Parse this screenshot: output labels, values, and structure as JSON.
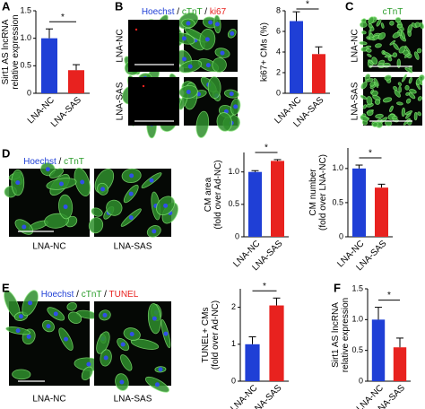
{
  "chart_data": [
    {
      "type": "bar",
      "panel": "A",
      "ylabel": [
        "Sirt1 AS lncRNA",
        "relative expression"
      ],
      "categories": [
        "LNA-NC",
        "LNA-SAS"
      ],
      "values": [
        1.0,
        0.42
      ],
      "errors": [
        0.17,
        0.1
      ],
      "colors": [
        "#1f3fd6",
        "#e8221f"
      ],
      "ylim": [
        0,
        1.5
      ],
      "yticks": [
        0,
        0.5,
        {
          "value": 1,
          "label": "1.0"
        },
        1.5
      ],
      "significance": "*"
    },
    {
      "type": "bar",
      "panel": "B",
      "ylabel": [
        "ki67+ CMs (%)"
      ],
      "categories": [
        "LNA-NC",
        "LNA-SAS"
      ],
      "values": [
        7.0,
        3.8
      ],
      "errors": [
        0.9,
        0.7
      ],
      "colors": [
        "#1f3fd6",
        "#e8221f"
      ],
      "ylim": [
        0,
        8
      ],
      "yticks": [
        0,
        2,
        4,
        6,
        8
      ],
      "significance": "*"
    },
    {
      "type": "bar",
      "panel": "D",
      "ylabel": [
        "CM area",
        "(fold over Ad-NC)"
      ],
      "categories": [
        "LNA-NC",
        "LNA-SAS"
      ],
      "values": [
        1.0,
        1.17
      ],
      "errors": [
        0.02,
        0.02
      ],
      "colors": [
        "#1f3fd6",
        "#e8221f"
      ],
      "ylim": [
        0,
        1.3
      ],
      "yticks": [
        0,
        0.5,
        {
          "value": 1,
          "label": "1.0"
        }
      ],
      "significance": "*"
    },
    {
      "type": "bar",
      "panel": "D",
      "ylabel": [
        "CM number",
        "(fold over LNA-NC)"
      ],
      "categories": [
        "LNA-NC",
        "LNA-SAS"
      ],
      "values": [
        1.0,
        0.72
      ],
      "errors": [
        0.05,
        0.05
      ],
      "colors": [
        "#1f3fd6",
        "#e8221f"
      ],
      "ylim": [
        0,
        1.3
      ],
      "yticks": [
        0,
        0.5,
        {
          "value": 1,
          "label": "1.0"
        }
      ],
      "significance": "*"
    },
    {
      "type": "bar",
      "panel": "E",
      "ylabel": [
        "TUNEL+ CMs",
        "(fold over Ad-NC)"
      ],
      "categories": [
        "LNA-NC",
        "LNA-SAS"
      ],
      "values": [
        1.0,
        2.05
      ],
      "errors": [
        0.2,
        0.2
      ],
      "colors": [
        "#1f3fd6",
        "#e8221f"
      ],
      "ylim": [
        0,
        2.5
      ],
      "yticks": [
        0,
        1,
        2
      ],
      "significance": "*"
    },
    {
      "type": "bar",
      "panel": "F",
      "ylabel": [
        "Sirt1 AS lncRNA",
        "relative expression"
      ],
      "categories": [
        "LNA-NC",
        "LNA-SAS"
      ],
      "values": [
        1.0,
        0.55
      ],
      "errors": [
        0.2,
        0.15
      ],
      "colors": [
        "#1f3fd6",
        "#e8221f"
      ],
      "ylim": [
        0,
        1.5
      ],
      "yticks": [
        0,
        0.5,
        {
          "value": 1,
          "label": "1.0"
        },
        1.5
      ],
      "significance": "*"
    }
  ],
  "figure": {
    "letters": [
      "B",
      "C",
      "E"
    ],
    "stain_b": [
      {
        "text": "Hoechst",
        "color": "#1f3fd6"
      },
      {
        "text": " / ",
        "color": "#000000"
      },
      {
        "text": "cTnT",
        "color": "#2a9d2a"
      },
      {
        "text": " / ",
        "color": "#000000"
      },
      {
        "text": "ki67",
        "color": "#e8221f"
      }
    ],
    "stain_c": [
      {
        "text": "cTnT",
        "color": "#2a9d2a"
      }
    ],
    "stain_d": [
      {
        "text": "Hoechst",
        "color": "#1f3fd6"
      },
      {
        "text": " / ",
        "color": "#000000"
      },
      {
        "text": "cTnT",
        "color": "#2a9d2a"
      }
    ],
    "stain_e": [
      {
        "text": "Hoechst",
        "color": "#1f3fd6"
      },
      {
        "text": " / ",
        "color": "#000000"
      },
      {
        "text": "cTnT",
        "color": "#2a9d2a"
      },
      {
        "text": " / ",
        "color": "#000000"
      },
      {
        "text": "TUNEL",
        "color": "#e8221f"
      }
    ],
    "rows_b": [
      "LNA-NC",
      "LNA-SAS"
    ],
    "rows_c": [
      "LNA-NC",
      "LNA-SAS"
    ],
    "cols_d": [
      "LNA-NC",
      "LNA-SAS"
    ],
    "cols_e": [
      "LNA-NC",
      "LNA-SAS"
    ]
  }
}
